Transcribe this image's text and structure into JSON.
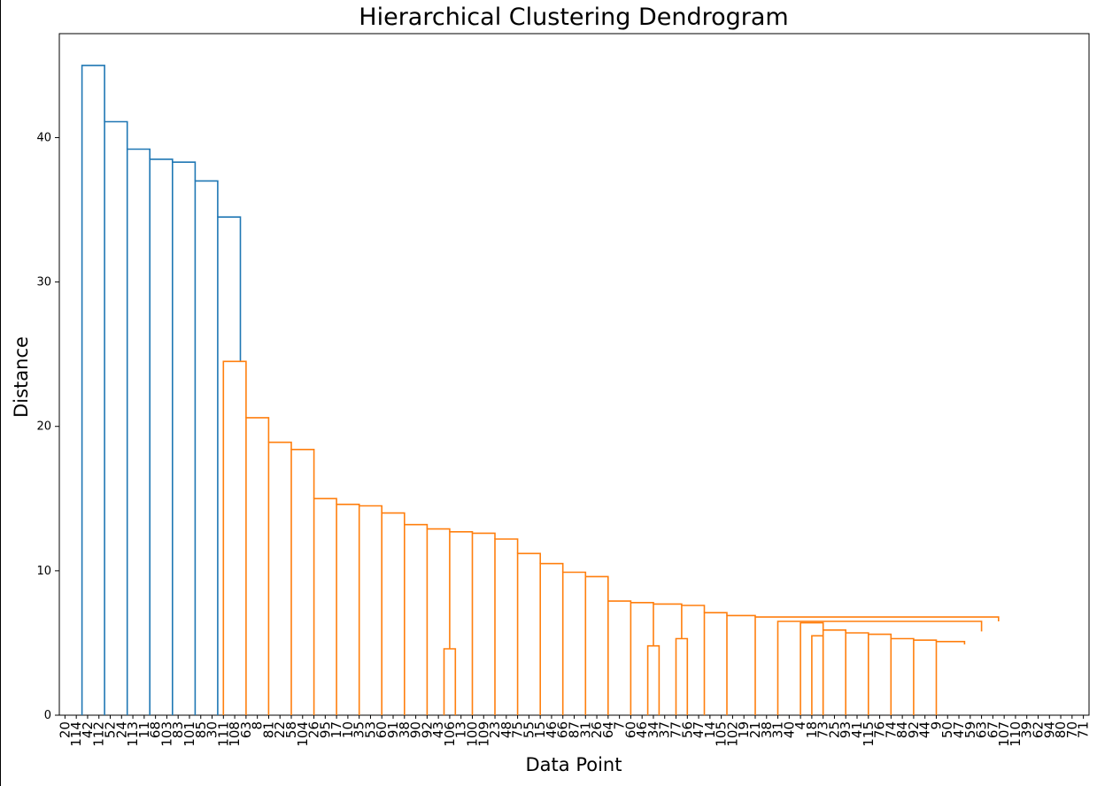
{
  "chart_data": {
    "type": "dendrogram",
    "title": "Hierarchical Clustering Dendrogram",
    "xlabel": "Data Point",
    "ylabel": "Distance",
    "ylim": [
      0,
      47.2
    ],
    "yticks": [
      0,
      10,
      20,
      30,
      40
    ],
    "grid": false,
    "colors": {
      "above_threshold": "#1f77b4",
      "cluster": "#ff7f0e",
      "axis": "#000000"
    },
    "leaves": [
      "20",
      "114",
      "42",
      "112",
      "52",
      "24",
      "113",
      "11",
      "68",
      "103",
      "83",
      "101",
      "85",
      "30",
      "111",
      "108",
      "63",
      "8",
      "81",
      "22",
      "58",
      "104",
      "26",
      "95",
      "17",
      "10",
      "35",
      "53",
      "60",
      "91",
      "38",
      "90",
      "92",
      "43",
      "106",
      "13",
      "100",
      "109",
      "23",
      "48",
      "75",
      "55",
      "15",
      "46",
      "66",
      "87",
      "31",
      "26",
      "64",
      "7",
      "60",
      "46",
      "34",
      "37",
      "77",
      "56",
      "47",
      "14",
      "105",
      "102",
      "19",
      "21",
      "38",
      "31",
      "40",
      "4",
      "18",
      "73",
      "25",
      "93",
      "41",
      "115",
      "76",
      "74",
      "84",
      "92",
      "44",
      "9",
      "50",
      "47",
      "59",
      "63",
      "67",
      "107",
      "110",
      "39",
      "62",
      "94",
      "80",
      "70",
      "71"
    ],
    "merges": [
      {
        "x": [
          2.5,
          2.5,
          4.5,
          4.5
        ],
        "y": [
          0,
          45.0,
          45.0,
          41.1
        ],
        "color": "#1f77b4"
      },
      {
        "x": [
          4.5,
          4.5,
          6.5,
          6.5
        ],
        "y": [
          0,
          41.1,
          41.1,
          39.2
        ],
        "color": "#1f77b4"
      },
      {
        "x": [
          6.5,
          6.5,
          8.5,
          8.5
        ],
        "y": [
          0,
          39.2,
          39.2,
          38.5
        ],
        "color": "#1f77b4"
      },
      {
        "x": [
          8.5,
          8.5,
          10.5,
          10.5
        ],
        "y": [
          0,
          38.5,
          38.5,
          38.3
        ],
        "color": "#1f77b4"
      },
      {
        "x": [
          10.5,
          10.5,
          12.5,
          12.5
        ],
        "y": [
          0,
          38.3,
          38.3,
          37.0
        ],
        "color": "#1f77b4"
      },
      {
        "x": [
          12.5,
          12.5,
          14.5,
          14.5
        ],
        "y": [
          0,
          37.0,
          37.0,
          34.5
        ],
        "color": "#1f77b4"
      },
      {
        "x": [
          14.5,
          14.5,
          16.5,
          16.5
        ],
        "y": [
          0,
          34.5,
          34.5,
          24.5
        ],
        "color": "#1f77b4"
      },
      {
        "x": [
          15.0,
          15.0,
          17.0,
          17.0
        ],
        "y": [
          0,
          24.5,
          24.5,
          20.6
        ],
        "color": "#ff7f0e"
      },
      {
        "x": [
          17.0,
          17.0,
          19.0,
          19.0
        ],
        "y": [
          0,
          20.6,
          20.6,
          18.9
        ],
        "color": "#ff7f0e"
      },
      {
        "x": [
          19.0,
          19.0,
          21.0,
          21.0
        ],
        "y": [
          0,
          18.9,
          18.9,
          18.4
        ],
        "color": "#ff7f0e"
      },
      {
        "x": [
          21.0,
          21.0,
          23.0,
          23.0
        ],
        "y": [
          0,
          18.4,
          18.4,
          15.0
        ],
        "color": "#ff7f0e"
      },
      {
        "x": [
          23.0,
          23.0,
          25.0,
          25.0
        ],
        "y": [
          0,
          15.0,
          15.0,
          14.6
        ],
        "color": "#ff7f0e"
      },
      {
        "x": [
          25.0,
          25.0,
          27.0,
          27.0
        ],
        "y": [
          0,
          14.6,
          14.6,
          14.5
        ],
        "color": "#ff7f0e"
      },
      {
        "x": [
          27.0,
          27.0,
          29.0,
          29.0
        ],
        "y": [
          0,
          14.5,
          14.5,
          14.0
        ],
        "color": "#ff7f0e"
      },
      {
        "x": [
          29.0,
          29.0,
          31.0,
          31.0
        ],
        "y": [
          0,
          14.0,
          14.0,
          13.2
        ],
        "color": "#ff7f0e"
      },
      {
        "x": [
          31.0,
          31.0,
          33.0,
          33.0
        ],
        "y": [
          0,
          13.2,
          13.2,
          12.9
        ],
        "color": "#ff7f0e"
      },
      {
        "x": [
          33.0,
          33.0,
          35.0,
          35.0
        ],
        "y": [
          0,
          12.9,
          12.9,
          12.7
        ],
        "color": "#ff7f0e"
      },
      {
        "x": [
          35.0,
          35.0,
          37.0,
          37.0
        ],
        "y": [
          4.6,
          12.7,
          12.7,
          12.6
        ],
        "color": "#ff7f0e"
      },
      {
        "x": [
          34.5,
          34.5,
          35.5,
          35.5
        ],
        "y": [
          0,
          4.6,
          4.6,
          0
        ],
        "color": "#ff7f0e"
      },
      {
        "x": [
          37.0,
          37.0,
          39.0,
          39.0
        ],
        "y": [
          0,
          12.6,
          12.6,
          12.2
        ],
        "color": "#ff7f0e"
      },
      {
        "x": [
          39.0,
          39.0,
          41.0,
          41.0
        ],
        "y": [
          0,
          12.2,
          12.2,
          11.2
        ],
        "color": "#ff7f0e"
      },
      {
        "x": [
          41.0,
          41.0,
          43.0,
          43.0
        ],
        "y": [
          0,
          11.2,
          11.2,
          10.5
        ],
        "color": "#ff7f0e"
      },
      {
        "x": [
          43.0,
          43.0,
          45.0,
          45.0
        ],
        "y": [
          0,
          10.5,
          10.5,
          9.9
        ],
        "color": "#ff7f0e"
      },
      {
        "x": [
          45.0,
          45.0,
          47.0,
          47.0
        ],
        "y": [
          0,
          9.9,
          9.9,
          9.6
        ],
        "color": "#ff7f0e"
      },
      {
        "x": [
          47.0,
          47.0,
          49.0,
          49.0
        ],
        "y": [
          0,
          9.6,
          9.6,
          7.9
        ],
        "color": "#ff7f0e"
      },
      {
        "x": [
          49.0,
          49.0,
          51.0,
          51.0
        ],
        "y": [
          0,
          7.9,
          7.9,
          7.8
        ],
        "color": "#ff7f0e"
      },
      {
        "x": [
          51.0,
          51.0,
          53.0,
          53.0
        ],
        "y": [
          0,
          7.8,
          7.8,
          7.7
        ],
        "color": "#ff7f0e"
      },
      {
        "x": [
          52.5,
          52.5,
          53.5,
          53.5
        ],
        "y": [
          0,
          4.8,
          4.8,
          0
        ],
        "color": "#ff7f0e"
      },
      {
        "x": [
          53.0,
          53.0,
          55.5,
          55.5
        ],
        "y": [
          4.8,
          7.7,
          7.7,
          7.6
        ],
        "color": "#ff7f0e"
      },
      {
        "x": [
          55.5,
          55.5,
          57.5,
          57.5
        ],
        "y": [
          5.3,
          7.6,
          7.6,
          7.1
        ],
        "color": "#ff7f0e"
      },
      {
        "x": [
          55.0,
          55.0,
          56.0,
          56.0
        ],
        "y": [
          0,
          5.3,
          5.3,
          0
        ],
        "color": "#ff7f0e"
      },
      {
        "x": [
          57.5,
          57.5,
          59.5,
          59.5
        ],
        "y": [
          0,
          7.1,
          7.1,
          6.9
        ],
        "color": "#ff7f0e"
      },
      {
        "x": [
          59.5,
          59.5,
          62.0,
          62.0
        ],
        "y": [
          0,
          6.9,
          6.9,
          6.8
        ],
        "color": "#ff7f0e"
      },
      {
        "x": [
          62.0,
          62.0,
          83.5,
          83.5
        ],
        "y": [
          0,
          6.8,
          6.8,
          6.5
        ],
        "color": "#ff7f0e"
      },
      {
        "x": [
          64.0,
          64.0,
          82.0,
          82.0
        ],
        "y": [
          0,
          6.5,
          6.5,
          5.8
        ],
        "color": "#ff7f0e"
      },
      {
        "x": [
          66.0,
          66.0,
          68.0,
          68.0
        ],
        "y": [
          0,
          6.4,
          6.4,
          5.9
        ],
        "color": "#ff7f0e"
      },
      {
        "x": [
          67.0,
          67.0,
          68.0,
          68.0
        ],
        "y": [
          0,
          5.5,
          5.5,
          0
        ],
        "color": "#ff7f0e"
      },
      {
        "x": [
          68.0,
          68.0,
          70.0,
          70.0
        ],
        "y": [
          0,
          5.9,
          5.9,
          5.7
        ],
        "color": "#ff7f0e"
      },
      {
        "x": [
          70.0,
          70.0,
          72.0,
          72.0
        ],
        "y": [
          0,
          5.7,
          5.7,
          5.6
        ],
        "color": "#ff7f0e"
      },
      {
        "x": [
          72.0,
          72.0,
          74.0,
          74.0
        ],
        "y": [
          0,
          5.6,
          5.6,
          5.3
        ],
        "color": "#ff7f0e"
      },
      {
        "x": [
          74.0,
          74.0,
          76.0,
          76.0
        ],
        "y": [
          0,
          5.3,
          5.3,
          5.2
        ],
        "color": "#ff7f0e"
      },
      {
        "x": [
          76.0,
          76.0,
          78.0,
          78.0
        ],
        "y": [
          0,
          5.2,
          5.2,
          5.1
        ],
        "color": "#ff7f0e"
      },
      {
        "x": [
          78.0,
          78.0,
          80.5,
          80.5
        ],
        "y": [
          0,
          5.1,
          5.1,
          4.9
        ],
        "color": "#ff7f0e"
      }
    ]
  }
}
